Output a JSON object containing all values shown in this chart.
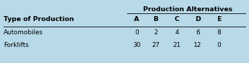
{
  "background_color": "#b8d9e8",
  "header_group": "Production Alternatives",
  "col_headers": [
    "A",
    "B",
    "C",
    "D",
    "E"
  ],
  "row_label_header": "Type of Production",
  "row_labels": [
    "Automobiles",
    "Forklifts"
  ],
  "row1_values": [
    "0",
    "2",
    "4",
    "6",
    "8"
  ],
  "row2_values": [
    "30",
    "27",
    "21",
    "12",
    "0"
  ],
  "fontsize": 6.5,
  "bold_fontsize": 6.8
}
